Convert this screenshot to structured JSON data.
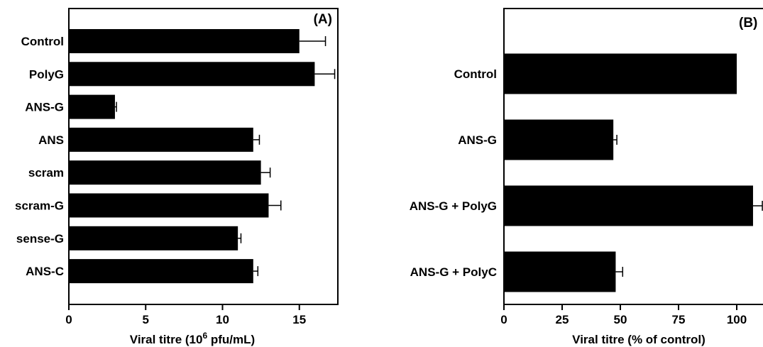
{
  "chart_data": [
    {
      "type": "bar",
      "orientation": "horizontal",
      "panel_label": "(A)",
      "categories": [
        "Control",
        "PolyG",
        "ANS-G",
        "ANS",
        "scram",
        "scram-G",
        "sense-G",
        "ANS-C"
      ],
      "values": [
        15.0,
        16.0,
        3.0,
        12.0,
        12.5,
        13.0,
        11.0,
        12.0
      ],
      "errors": [
        1.7,
        1.3,
        0.1,
        0.4,
        0.6,
        0.8,
        0.2,
        0.3
      ],
      "xlabel_main": "Viral titre (10",
      "xlabel_sup": "6",
      "xlabel_end": " pfu/mL)",
      "xlim": [
        0,
        17.5
      ],
      "xticks": [
        "0",
        "5",
        "10",
        "15"
      ],
      "grid": false,
      "bar_color": "#000000"
    },
    {
      "type": "bar",
      "orientation": "horizontal",
      "panel_label": "(B)",
      "categories": [
        "Control",
        "ANS-G",
        "ANS-G + PolyG",
        "ANS-G + PolyC"
      ],
      "values": [
        100,
        47,
        107,
        48
      ],
      "errors": [
        0,
        1.5,
        4,
        3
      ],
      "xlabel": "Viral titre (% of control)",
      "xlim": [
        0,
        112
      ],
      "xticks": [
        "0",
        "25",
        "50",
        "75",
        "100"
      ],
      "grid": false,
      "bar_color": "#000000"
    }
  ]
}
